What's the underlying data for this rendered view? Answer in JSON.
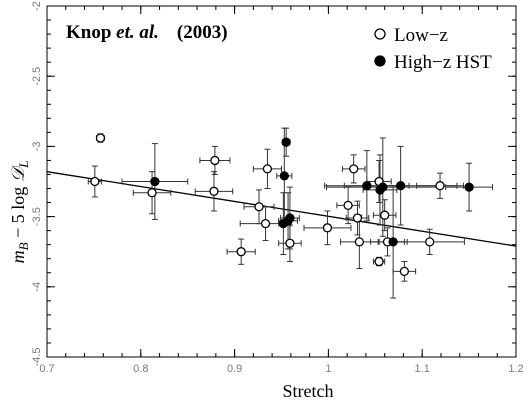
{
  "chart_data": {
    "type": "scatter",
    "title": "",
    "annotation": {
      "author": "Knop ",
      "etal": "et. al.",
      "year": "(2003)"
    },
    "xlabel": "Stretch",
    "ylabel": "m_B − 5 log D_L",
    "xlim": [
      0.7,
      1.2
    ],
    "ylim": [
      -2,
      -4.5
    ],
    "x_ticks": [
      "0.7",
      "0.8",
      "0.9",
      "1",
      "1.1",
      "1.2"
    ],
    "y_ticks": [
      "-2",
      "-2.5",
      "-3",
      "-3.5",
      "-4",
      "-4.5"
    ],
    "legend_position": "top-right",
    "fit_line": {
      "x": [
        0.7,
        1.2
      ],
      "y": [
        -3.18,
        -3.71
      ]
    },
    "series": [
      {
        "name": "Low−z",
        "marker": "open-circle",
        "points": [
          {
            "x": 0.757,
            "y": -2.94,
            "xerr": 0.004,
            "yerr": 0.03
          },
          {
            "x": 0.751,
            "y": -3.25,
            "xerr": 0.007,
            "yerr": 0.11
          },
          {
            "x": 0.812,
            "y": -3.33,
            "xerr": 0.02,
            "yerr": 0.15
          },
          {
            "x": 0.879,
            "y": -3.1,
            "xerr": 0.016,
            "yerr": 0.1
          },
          {
            "x": 0.878,
            "y": -3.32,
            "xerr": 0.02,
            "yerr": 0.14
          },
          {
            "x": 0.935,
            "y": -3.16,
            "xerr": 0.015,
            "yerr": 0.14
          },
          {
            "x": 0.926,
            "y": -3.43,
            "xerr": 0.016,
            "yerr": 0.12
          },
          {
            "x": 0.933,
            "y": -3.55,
            "xerr": 0.027,
            "yerr": 0.12
          },
          {
            "x": 0.907,
            "y": -3.75,
            "xerr": 0.015,
            "yerr": 0.09
          },
          {
            "x": 0.959,
            "y": -3.69,
            "xerr": 0.012,
            "yerr": 0.13
          },
          {
            "x": 0.999,
            "y": -3.58,
            "xerr": 0.025,
            "yerr": 0.12
          },
          {
            "x": 1.027,
            "y": -3.16,
            "xerr": 0.012,
            "yerr": 0.1
          },
          {
            "x": 1.021,
            "y": -3.42,
            "xerr": 0.012,
            "yerr": 0.13
          },
          {
            "x": 1.031,
            "y": -3.51,
            "xerr": 0.012,
            "yerr": 0.12
          },
          {
            "x": 1.033,
            "y": -3.68,
            "xerr": 0.02,
            "yerr": 0.19
          },
          {
            "x": 1.054,
            "y": -3.25,
            "xerr": 0.013,
            "yerr": 0.15
          },
          {
            "x": 1.054,
            "y": -3.82,
            "xerr": 0.006,
            "yerr": 0.03
          },
          {
            "x": 1.06,
            "y": -3.49,
            "xerr": 0.012,
            "yerr": 0.11
          },
          {
            "x": 1.063,
            "y": -3.68,
            "xerr": 0.018,
            "yerr": 0.1
          },
          {
            "x": 1.081,
            "y": -3.89,
            "xerr": 0.012,
            "yerr": 0.07
          },
          {
            "x": 1.108,
            "y": -3.68,
            "xerr": 0.037,
            "yerr": 0.09
          },
          {
            "x": 1.119,
            "y": -3.28,
            "xerr": 0.025,
            "yerr": 0.09
          }
        ]
      },
      {
        "name": "High−z HST",
        "marker": "filled-circle",
        "points": [
          {
            "x": 0.815,
            "y": -3.25,
            "xerr": 0.035,
            "yerr": 0.27
          },
          {
            "x": 0.955,
            "y": -2.97,
            "xerr": 0.004,
            "yerr": 0.1
          },
          {
            "x": 0.953,
            "y": -3.21,
            "xerr": 0.008,
            "yerr": 0.34
          },
          {
            "x": 0.952,
            "y": -3.55,
            "xerr": 0.005,
            "yerr": 0.22
          },
          {
            "x": 0.957,
            "y": -3.53,
            "xerr": 0.01,
            "yerr": 0.2
          },
          {
            "x": 0.959,
            "y": -3.51,
            "xerr": 0.01,
            "yerr": 0.22
          },
          {
            "x": 1.041,
            "y": -3.28,
            "xerr": 0.045,
            "yerr": 0.25
          },
          {
            "x": 1.055,
            "y": -3.31,
            "xerr": 0.018,
            "yerr": 0.25
          },
          {
            "x": 1.058,
            "y": -3.29,
            "xerr": 0.06,
            "yerr": 0.35
          },
          {
            "x": 1.069,
            "y": -3.68,
            "xerr": 0.015,
            "yerr": 0.4
          },
          {
            "x": 1.077,
            "y": -3.28,
            "xerr": 0.06,
            "yerr": 0.28
          },
          {
            "x": 1.15,
            "y": -3.29,
            "xerr": 0.025,
            "yerr": 0.17
          }
        ]
      }
    ]
  }
}
